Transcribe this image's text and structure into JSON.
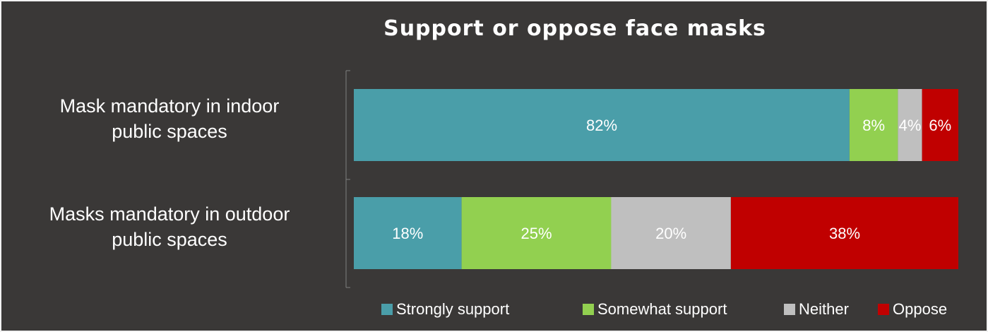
{
  "chart_data": {
    "type": "bar",
    "orientation": "horizontal",
    "stacked": "percent",
    "title": "Support or oppose face masks",
    "categories": [
      "Mask mandatory in indoor public spaces",
      "Masks mandatory in outdoor public spaces"
    ],
    "category_label_lines": [
      [
        "Mask mandatory in indoor",
        "public spaces"
      ],
      [
        "Masks mandatory in outdoor",
        "public spaces"
      ]
    ],
    "series": [
      {
        "name": "Strongly support",
        "color": "#4a9ea9",
        "values": [
          82,
          18
        ],
        "labels": [
          "82%",
          "18%"
        ]
      },
      {
        "name": "Somewhat support",
        "color": "#92d050",
        "values": [
          8,
          25
        ],
        "labels": [
          "8%",
          "25%"
        ]
      },
      {
        "name": "Neither",
        "color": "#bfbfbf",
        "values": [
          4,
          20
        ],
        "labels": [
          "4%",
          "20%"
        ]
      },
      {
        "name": "Oppose",
        "color": "#c00000",
        "values": [
          6,
          38
        ],
        "labels": [
          "6%",
          "38%"
        ]
      }
    ],
    "xlim": [
      0,
      100
    ],
    "legend_position": "bottom-right",
    "grid": false
  },
  "colors": {
    "background": "#3a3837",
    "border": "#f2f2f2",
    "text": "#ffffff",
    "axis": "#7f7f7f"
  }
}
